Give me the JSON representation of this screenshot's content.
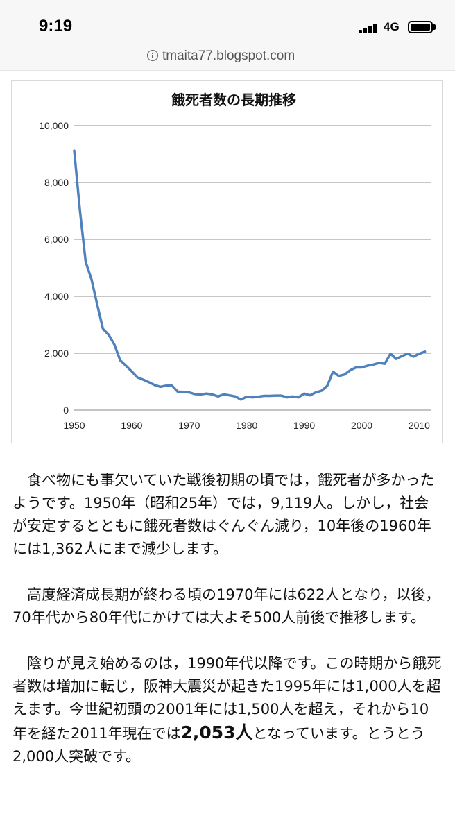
{
  "status_bar": {
    "time": "9:19",
    "network": "4G"
  },
  "browser": {
    "url": "tmaita77.blogspot.com"
  },
  "chart_data": {
    "type": "line",
    "title": "餓死者数の長期推移",
    "xlabel": "",
    "ylabel": "",
    "xlim": [
      1950,
      2011
    ],
    "ylim": [
      0,
      10000
    ],
    "y_ticks": [
      "10,000",
      "8,000",
      "6,000",
      "4,000",
      "2,000",
      "0"
    ],
    "x_ticks": [
      "1950",
      "1960",
      "1970",
      "1980",
      "1990",
      "2000",
      "2010"
    ],
    "grid": "horizontal",
    "color": "#4f81bd",
    "series": [
      {
        "name": "",
        "x": [
          1950,
          1951,
          1952,
          1953,
          1954,
          1955,
          1956,
          1957,
          1958,
          1959,
          1960,
          1961,
          1962,
          1963,
          1964,
          1965,
          1966,
          1967,
          1968,
          1969,
          1970,
          1971,
          1972,
          1973,
          1974,
          1975,
          1976,
          1977,
          1978,
          1979,
          1980,
          1981,
          1982,
          1983,
          1984,
          1985,
          1986,
          1987,
          1988,
          1989,
          1990,
          1991,
          1992,
          1993,
          1994,
          1995,
          1996,
          1997,
          1998,
          1999,
          2000,
          2001,
          2002,
          2003,
          2004,
          2005,
          2006,
          2007,
          2008,
          2009,
          2010,
          2011
        ],
        "values": [
          9119,
          7000,
          5200,
          4600,
          3700,
          2850,
          2650,
          2300,
          1750,
          1560,
          1362,
          1150,
          1070,
          980,
          880,
          820,
          860,
          860,
          650,
          640,
          622,
          560,
          550,
          580,
          550,
          480,
          550,
          520,
          480,
          370,
          470,
          450,
          470,
          500,
          500,
          510,
          510,
          450,
          480,
          450,
          580,
          520,
          620,
          680,
          850,
          1350,
          1200,
          1250,
          1400,
          1500,
          1500,
          1560,
          1600,
          1660,
          1630,
          1980,
          1800,
          1900,
          1980,
          1880,
          1980,
          2053
        ]
      }
    ]
  },
  "article": {
    "p1": "食べ物にも事欠いていた戦後初期の頃では，餓死者が多かったようです。1950年（昭和25年）では，9,119人。しかし，社会が安定するとともに餓死者数はぐんぐん減り，10年後の1960年には1,362人にまで減少します。",
    "p2": "高度経済成長期が終わる頃の1970年には622人となり，以後，70年代から80年代にかけては大よそ500人前後で推移します。",
    "p3_before": "陰りが見え始めるのは，1990年代以降です。この時期から餓死者数は増加に転じ，阪神大震災が起きた1995年には1,000人を超えます。今世紀初頭の2001年には1,500人を超え，それから10年を経た2011年現在では",
    "p3_bold": "2,053人",
    "p3_after": "となっています。とうとう2,000人突破です。"
  }
}
